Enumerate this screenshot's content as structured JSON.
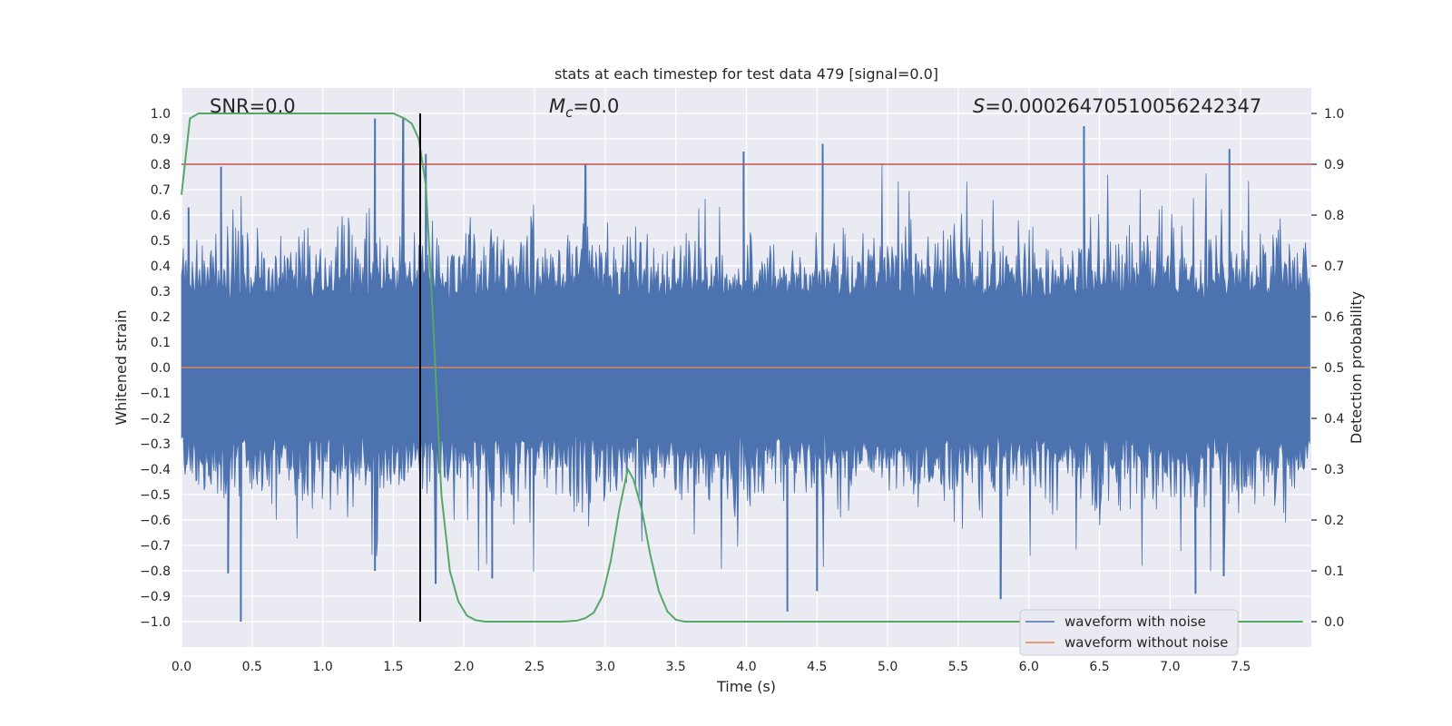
{
  "chart_data": {
    "type": "line",
    "title": "stats at each timestep for test data 479 [signal=0.0]",
    "xlabel": "Time (s)",
    "ylabel_left": "Whitened strain",
    "ylabel_right": "Detection probability",
    "xlim": [
      0.0,
      8.0
    ],
    "ylim_left": [
      -1.1,
      1.1
    ],
    "ylim_right": [
      -0.05,
      1.05
    ],
    "grid": true,
    "xticks": [
      0.0,
      0.5,
      1.0,
      1.5,
      2.0,
      2.5,
      3.0,
      3.5,
      4.0,
      4.5,
      5.0,
      5.5,
      6.0,
      6.5,
      7.0,
      7.5
    ],
    "xtick_labels": [
      "0.0",
      "0.5",
      "1.0",
      "1.5",
      "2.0",
      "2.5",
      "3.0",
      "3.5",
      "4.0",
      "4.5",
      "5.0",
      "5.5",
      "6.0",
      "6.5",
      "7.0",
      "7.5"
    ],
    "yticks_left": [
      1.0,
      0.9,
      0.8,
      0.7,
      0.6,
      0.5,
      0.4,
      0.3,
      0.2,
      0.1,
      0.0,
      -0.1,
      -0.2,
      -0.3,
      -0.4,
      -0.5,
      -0.6,
      -0.7,
      -0.8,
      -0.9,
      -1.0
    ],
    "ytick_labels_left": [
      "1.0",
      "0.9",
      "0.8",
      "0.7",
      "0.6",
      "0.5",
      "0.4",
      "0.3",
      "0.2",
      "0.1",
      "0.0",
      "−0.1",
      "−0.2",
      "−0.3",
      "−0.4",
      "−0.5",
      "−0.6",
      "−0.7",
      "−0.8",
      "−0.9",
      "−1.0"
    ],
    "yticks_right": [
      1.0,
      0.9,
      0.8,
      0.7,
      0.6,
      0.5,
      0.4,
      0.3,
      0.2,
      0.1,
      0.0
    ],
    "ytick_labels_right": [
      "1.0",
      "0.9",
      "0.8",
      "0.7",
      "0.6",
      "0.5",
      "0.4",
      "0.3",
      "0.2",
      "0.1",
      "0.0"
    ],
    "annotations": {
      "snr": "SNR=0.0",
      "mc_symbol": "M",
      "mc_sub": "c",
      "mc_value": "=0.0",
      "s_symbol": "S",
      "s_value": "=0.0002647051005624234​7"
    },
    "series": [
      {
        "name": "waveform with noise",
        "color": "#4c72b0",
        "axis": "left",
        "kind": "noise",
        "t_start": 0.0,
        "t_end": 7.99,
        "peaks_top": [
          [
            0.05,
            0.63
          ],
          [
            0.28,
            0.79
          ],
          [
            1.37,
            0.98
          ],
          [
            1.57,
            0.98
          ],
          [
            1.73,
            0.84
          ],
          [
            2.86,
            0.8
          ],
          [
            3.98,
            0.85
          ],
          [
            4.54,
            0.88
          ],
          [
            6.39,
            0.95
          ],
          [
            7.42,
            0.86
          ]
        ],
        "peaks_bottom": [
          [
            0.42,
            -1.0
          ],
          [
            0.33,
            -0.81
          ],
          [
            1.37,
            -0.8
          ],
          [
            1.8,
            -0.85
          ],
          [
            2.2,
            -0.83
          ],
          [
            4.29,
            -0.96
          ],
          [
            4.5,
            -0.88
          ],
          [
            5.8,
            -0.91
          ],
          [
            7.18,
            -0.89
          ],
          [
            7.38,
            -0.82
          ]
        ]
      },
      {
        "name": "waveform without noise",
        "color": "#dd8452",
        "axis": "left",
        "x": [
          0.0,
          7.99
        ],
        "y": [
          0.0,
          0.0
        ]
      },
      {
        "name": "detection probability",
        "color": "#55a868",
        "axis": "right",
        "x": [
          0.0,
          0.06,
          0.12,
          0.2,
          0.5,
          1.0,
          1.5,
          1.58,
          1.63,
          1.68,
          1.73,
          1.78,
          1.84,
          1.9,
          1.96,
          2.02,
          2.08,
          2.15,
          2.25,
          2.5,
          2.7,
          2.8,
          2.86,
          2.92,
          2.98,
          3.04,
          3.1,
          3.16,
          3.2,
          3.26,
          3.32,
          3.38,
          3.44,
          3.5,
          3.56,
          4.0,
          5.0,
          6.0,
          7.0,
          7.94
        ],
        "y": [
          0.84,
          0.99,
          1.0,
          1.0,
          1.0,
          1.0,
          1.0,
          0.99,
          0.98,
          0.95,
          0.86,
          0.6,
          0.25,
          0.1,
          0.04,
          0.012,
          0.003,
          0.0,
          0.0,
          0.0,
          0.0,
          0.002,
          0.007,
          0.018,
          0.05,
          0.12,
          0.22,
          0.3,
          0.28,
          0.22,
          0.13,
          0.06,
          0.02,
          0.004,
          0.0,
          0.0,
          0.0,
          0.0,
          0.0,
          0.0
        ]
      }
    ],
    "threshold": {
      "name": "threshold",
      "color": "#c44e52",
      "axis": "right",
      "value": 0.9
    },
    "marker_line": {
      "name": "event marker",
      "color": "#000000",
      "x": 1.69,
      "y_range": [
        -1.0,
        1.0
      ]
    },
    "legend": {
      "position": "bottom-right",
      "entries": [
        {
          "label": "waveform with noise",
          "color": "#4c72b0"
        },
        {
          "label": "waveform without noise",
          "color": "#dd8452"
        }
      ]
    }
  }
}
